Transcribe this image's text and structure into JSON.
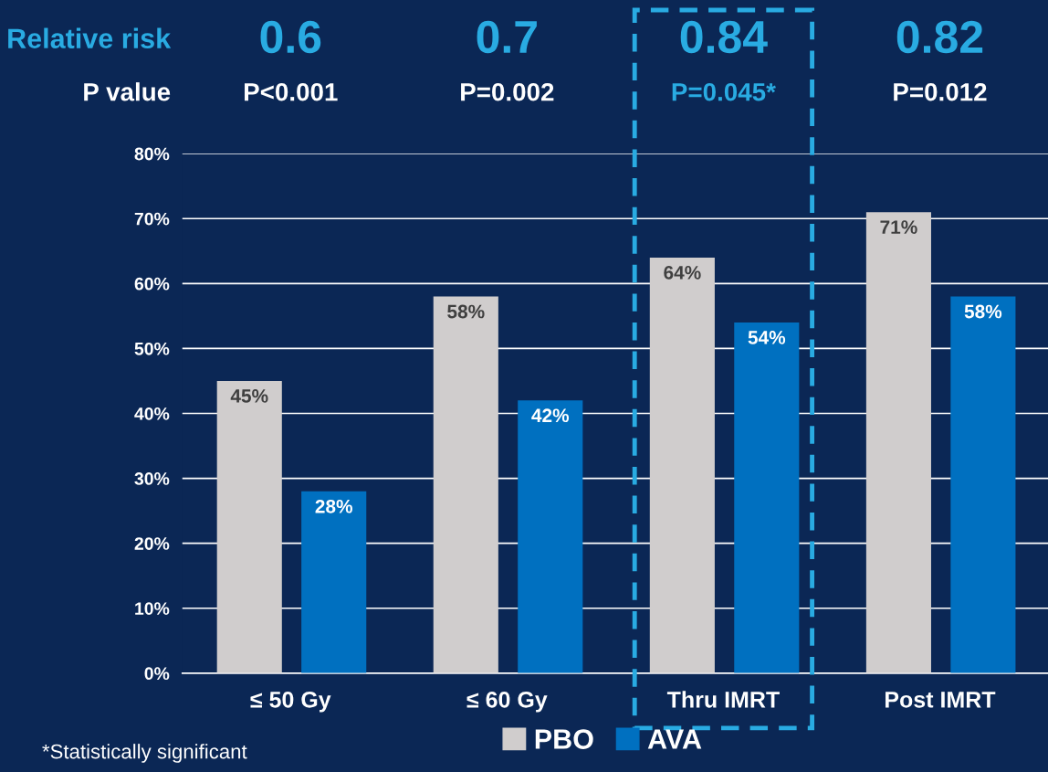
{
  "chart_data": {
    "type": "bar",
    "categories": [
      "≤ 50 Gy",
      "≤ 60 Gy",
      "Thru IMRT",
      "Post IMRT"
    ],
    "series": [
      {
        "name": "PBO",
        "color": "#d0cdcd",
        "values": [
          45,
          58,
          64,
          71
        ],
        "value_labels": [
          "45%",
          "58%",
          "64%",
          "71%"
        ]
      },
      {
        "name": "AVA",
        "color": "#0070c0",
        "values": [
          28,
          42,
          54,
          58
        ],
        "value_labels": [
          "28%",
          "42%",
          "54%",
          "58%"
        ]
      }
    ],
    "ylim": [
      0,
      80
    ],
    "yticks": [
      {
        "value": 0,
        "label": "0%"
      },
      {
        "value": 10,
        "label": "10%"
      },
      {
        "value": 20,
        "label": "20%"
      },
      {
        "value": 30,
        "label": "30%"
      },
      {
        "value": 40,
        "label": "40%"
      },
      {
        "value": 50,
        "label": "50%"
      },
      {
        "value": 60,
        "label": "60%"
      },
      {
        "value": 70,
        "label": "70%"
      },
      {
        "value": 80,
        "label": "80%"
      }
    ],
    "grid": "y",
    "legend": "bottom",
    "annotations": [
      "Relative risk",
      "0.6",
      "0.7",
      "0.84",
      "0.82",
      "P value",
      "P<0.001",
      "P=0.002",
      "P=0.045*",
      "P=0.012",
      "*Statistically significant"
    ]
  }
}
